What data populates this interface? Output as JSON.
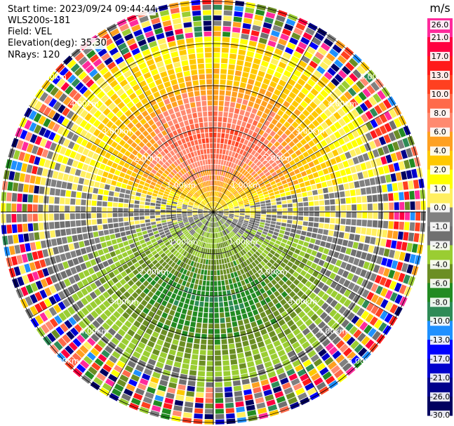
{
  "header": {
    "start_time": "Start time: 2023/09/24 09:44:44",
    "instrument": "WLS200s-181",
    "field": "Field: VEL",
    "elevation": "Elevation(deg): 35.30",
    "nrays": "NRays: 120"
  },
  "colorbar": {
    "unit": "m/s",
    "ticks": [
      "26.0",
      "21.0",
      "17.0",
      "13.0",
      "10.0",
      "8.0",
      "6.0",
      "4.0",
      "2.0",
      "1.0",
      "0.0",
      "-1.0",
      "-2.0",
      "-4.0",
      "-6.0",
      "-8.0",
      "-10.0",
      "-13.0",
      "-17.0",
      "-21.0",
      "-26.0",
      "-30.0"
    ],
    "colors": [
      "#ff2a9c",
      "#ff0040",
      "#ff1a1a",
      "#ff4020",
      "#ff6a4a",
      "#ff8a70",
      "#ffa020",
      "#ffc800",
      "#ffff00",
      "#ffef60",
      "#808080",
      "#707070",
      "#9acd32",
      "#6b8e23",
      "#228b22",
      "#2e8b57",
      "#1e90ff",
      "#0000ff",
      "#0000cd",
      "#00008b",
      "#000060"
    ]
  },
  "chart_data": {
    "type": "ppi",
    "title": "",
    "range_rings": [
      "1.00km",
      "2.00km",
      "3.00km",
      "4.00km",
      "5.00km"
    ],
    "max_range_km": 5.0,
    "nrays": 120,
    "gates_per_ray": 40,
    "velocity_pattern_ms": {
      "north_near": 2.0,
      "north_mid": 6.0,
      "north_core_max": 10.0,
      "center": 0.0,
      "south_near": -2.0,
      "south_mid": -6.0,
      "south_core_min": -8.0,
      "far_range": "noise"
    }
  }
}
